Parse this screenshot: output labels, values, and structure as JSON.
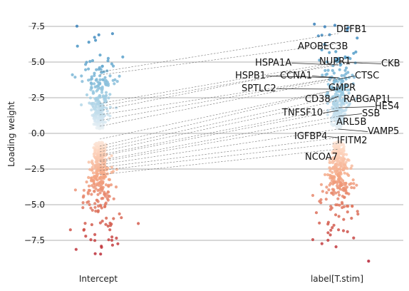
{
  "chart_data": {
    "type": "scatter",
    "title": "",
    "xlabel": "",
    "ylabel": "Loading weight",
    "ylim": [
      -9.2,
      8.1
    ],
    "yticks": [
      -7.5,
      -5.0,
      -2.5,
      0.0,
      2.5,
      5.0,
      7.5
    ],
    "ytick_labels": [
      "−7.5",
      "−5.0",
      "−2.5",
      "0.0",
      "2.5",
      "5.0",
      "7.5"
    ],
    "categories": [
      "Intercept",
      "label[T.stim]"
    ],
    "grid": "horizontal",
    "colormap": "RdBu",
    "colors": {
      "positive": "#2166ac",
      "negative": "#b2182b",
      "neutral": "#f7f7f7"
    },
    "highlighted_genes": [
      {
        "gene": "DEFB1",
        "intercept": 4.3,
        "stim": 7.0
      },
      {
        "gene": "APOBEC3B",
        "intercept": 4.1,
        "stim": 6.3
      },
      {
        "gene": "CKB",
        "intercept": 2.1,
        "stim": 5.0
      },
      {
        "gene": "HSPA1A",
        "intercept": 1.9,
        "stim": 4.8
      },
      {
        "gene": "NUPR1",
        "intercept": 1.6,
        "stim": 4.9
      },
      {
        "gene": "HSPB1",
        "intercept": 1.3,
        "stim": 3.9
      },
      {
        "gene": "CCNA1",
        "intercept": 0.9,
        "stim": 3.9
      },
      {
        "gene": "CTSC",
        "intercept": 0.5,
        "stim": 3.8
      },
      {
        "gene": "SPTLC2",
        "intercept": -0.4,
        "stim": 3.1
      },
      {
        "gene": "GMPR",
        "intercept": -0.9,
        "stim": 3.1
      },
      {
        "gene": "CD38",
        "intercept": -1.1,
        "stim": 2.6
      },
      {
        "gene": "RABGAP1L",
        "intercept": -1.3,
        "stim": 2.3
      },
      {
        "gene": "HES4",
        "intercept": -1.5,
        "stim": 1.8
      },
      {
        "gene": "TNFSF10",
        "intercept": -1.6,
        "stim": 1.6
      },
      {
        "gene": "SSB",
        "intercept": -1.9,
        "stim": 1.2
      },
      {
        "gene": "ARL5B",
        "intercept": -2.0,
        "stim": 0.9
      },
      {
        "gene": "VAMP5",
        "intercept": -2.2,
        "stim": 0.3
      },
      {
        "gene": "IGFBP4",
        "intercept": -2.4,
        "stim": -0.3
      },
      {
        "gene": "IFITM2",
        "intercept": -2.6,
        "stim": -0.7
      },
      {
        "gene": "NCOA7",
        "intercept": -2.9,
        "stim": -1.1
      }
    ]
  }
}
